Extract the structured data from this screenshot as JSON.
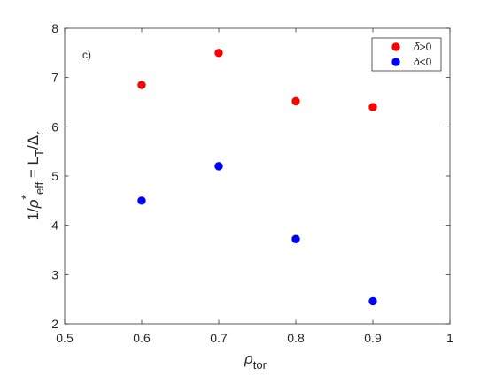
{
  "chart_data": {
    "type": "scatter",
    "panel_label": "c)",
    "xlabel": {
      "main": "ρ",
      "sub": "tor"
    },
    "ylabel": {
      "parts": [
        {
          "text": "1/",
          "style": "normal"
        },
        {
          "text": "ρ",
          "style": "normal"
        },
        {
          "text": "*",
          "style": "sup"
        },
        {
          "text": "eff",
          "style": "sub"
        },
        {
          "text": " = L",
          "style": "normal"
        },
        {
          "text": "T",
          "style": "sub"
        },
        {
          "text": "/Δ",
          "style": "normal"
        },
        {
          "text": "r",
          "style": "sub"
        }
      ]
    },
    "xlim": [
      0.5,
      1.0
    ],
    "ylim": [
      2,
      8
    ],
    "xticks": [
      0.5,
      0.6,
      0.7,
      0.8,
      0.9,
      1.0
    ],
    "xtick_labels": [
      "0.5",
      "0.6",
      "0.7",
      "0.8",
      "0.9",
      "1"
    ],
    "yticks": [
      2,
      3,
      4,
      5,
      6,
      7,
      8
    ],
    "ytick_labels": [
      "2",
      "3",
      "4",
      "5",
      "6",
      "7",
      "8"
    ],
    "grid": false,
    "legend_position": "top-right",
    "series": [
      {
        "name": "δ>0",
        "color": "#ff0000",
        "x": [
          0.6,
          0.7,
          0.8,
          0.9
        ],
        "y": [
          6.85,
          7.5,
          6.52,
          6.4
        ]
      },
      {
        "name": "δ<0",
        "color": "#0000ff",
        "x": [
          0.6,
          0.7,
          0.8,
          0.9
        ],
        "y": [
          4.5,
          5.2,
          3.72,
          2.46
        ]
      }
    ]
  }
}
